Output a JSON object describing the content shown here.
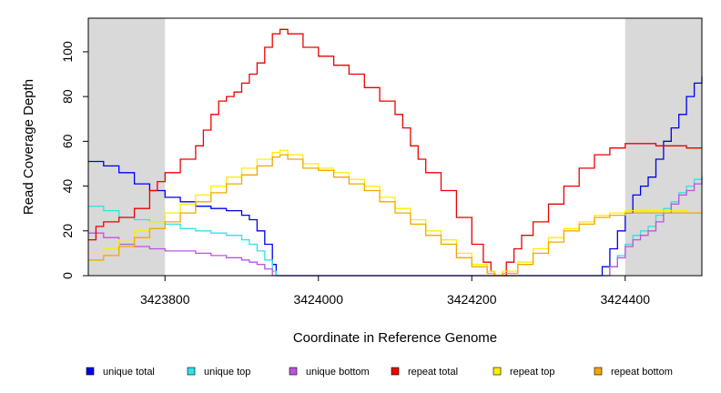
{
  "chart_data": {
    "type": "line",
    "title": "",
    "xlabel": "Coordinate in Reference Genome",
    "ylabel": "Read Coverage Depth",
    "xlim": [
      3423700,
      3424500
    ],
    "ylim": [
      0,
      115
    ],
    "x_ticks": [
      3423800,
      3424000,
      3424200,
      3424400
    ],
    "y_ticks": [
      0,
      20,
      40,
      60,
      80,
      100
    ],
    "shaded_regions": [
      [
        3423700,
        3423800
      ],
      [
        3424400,
        3424500
      ]
    ],
    "shade_color": "#d9d9d9",
    "grid": false,
    "legend_position": "bottom",
    "series": [
      {
        "name": "unique total",
        "color": "#0000ee",
        "points": [
          [
            3423700,
            51
          ],
          [
            3423720,
            49
          ],
          [
            3423740,
            46
          ],
          [
            3423760,
            41
          ],
          [
            3423780,
            38
          ],
          [
            3423800,
            35
          ],
          [
            3423820,
            33
          ],
          [
            3423840,
            31
          ],
          [
            3423860,
            30
          ],
          [
            3423880,
            29
          ],
          [
            3423900,
            27
          ],
          [
            3423910,
            25
          ],
          [
            3423920,
            20
          ],
          [
            3423930,
            14
          ],
          [
            3423940,
            5
          ],
          [
            3423945,
            0
          ],
          [
            3424360,
            0
          ],
          [
            3424370,
            4
          ],
          [
            3424380,
            12
          ],
          [
            3424390,
            20
          ],
          [
            3424400,
            28
          ],
          [
            3424410,
            36
          ],
          [
            3424420,
            40
          ],
          [
            3424430,
            44
          ],
          [
            3424440,
            52
          ],
          [
            3424450,
            60
          ],
          [
            3424460,
            66
          ],
          [
            3424470,
            72
          ],
          [
            3424480,
            80
          ],
          [
            3424490,
            86
          ],
          [
            3424500,
            89
          ]
        ]
      },
      {
        "name": "unique top",
        "color": "#33e0e8",
        "points": [
          [
            3423700,
            31
          ],
          [
            3423720,
            29
          ],
          [
            3423740,
            26
          ],
          [
            3423760,
            25
          ],
          [
            3423780,
            24
          ],
          [
            3423800,
            23
          ],
          [
            3423820,
            21
          ],
          [
            3423840,
            20
          ],
          [
            3423860,
            19
          ],
          [
            3423880,
            18
          ],
          [
            3423900,
            16
          ],
          [
            3423910,
            14
          ],
          [
            3423920,
            11
          ],
          [
            3423930,
            7
          ],
          [
            3423940,
            2
          ],
          [
            3423945,
            0
          ],
          [
            3424370,
            0
          ],
          [
            3424380,
            4
          ],
          [
            3424390,
            9
          ],
          [
            3424400,
            14
          ],
          [
            3424410,
            18
          ],
          [
            3424420,
            20
          ],
          [
            3424430,
            22
          ],
          [
            3424440,
            27
          ],
          [
            3424450,
            30
          ],
          [
            3424460,
            33
          ],
          [
            3424470,
            37
          ],
          [
            3424480,
            40
          ],
          [
            3424490,
            43
          ],
          [
            3424500,
            45
          ]
        ]
      },
      {
        "name": "unique bottom",
        "color": "#bb55dd",
        "points": [
          [
            3423700,
            19
          ],
          [
            3423720,
            17
          ],
          [
            3423740,
            14
          ],
          [
            3423760,
            13
          ],
          [
            3423780,
            12
          ],
          [
            3423800,
            11
          ],
          [
            3423820,
            11
          ],
          [
            3423840,
            10
          ],
          [
            3423860,
            9
          ],
          [
            3423880,
            8
          ],
          [
            3423900,
            7
          ],
          [
            3423910,
            6
          ],
          [
            3423920,
            5
          ],
          [
            3423930,
            3
          ],
          [
            3423940,
            0
          ],
          [
            3424370,
            0
          ],
          [
            3424380,
            4
          ],
          [
            3424390,
            8
          ],
          [
            3424400,
            13
          ],
          [
            3424410,
            16
          ],
          [
            3424420,
            18
          ],
          [
            3424430,
            20
          ],
          [
            3424440,
            24
          ],
          [
            3424450,
            28
          ],
          [
            3424460,
            32
          ],
          [
            3424470,
            36
          ],
          [
            3424480,
            38
          ],
          [
            3424490,
            41
          ],
          [
            3424500,
            44
          ]
        ]
      },
      {
        "name": "repeat total",
        "color": "#ee0000",
        "points": [
          [
            3423700,
            16
          ],
          [
            3423710,
            22
          ],
          [
            3423720,
            24
          ],
          [
            3423740,
            26
          ],
          [
            3423760,
            30
          ],
          [
            3423780,
            38
          ],
          [
            3423790,
            42
          ],
          [
            3423800,
            46
          ],
          [
            3423820,
            52
          ],
          [
            3423840,
            58
          ],
          [
            3423850,
            65
          ],
          [
            3423860,
            72
          ],
          [
            3423870,
            78
          ],
          [
            3423880,
            80
          ],
          [
            3423890,
            82
          ],
          [
            3423900,
            86
          ],
          [
            3423910,
            90
          ],
          [
            3423920,
            95
          ],
          [
            3423930,
            102
          ],
          [
            3423940,
            108
          ],
          [
            3423950,
            110
          ],
          [
            3423960,
            108
          ],
          [
            3423980,
            102
          ],
          [
            3424000,
            98
          ],
          [
            3424020,
            94
          ],
          [
            3424040,
            90
          ],
          [
            3424060,
            84
          ],
          [
            3424080,
            78
          ],
          [
            3424100,
            72
          ],
          [
            3424110,
            66
          ],
          [
            3424120,
            58
          ],
          [
            3424130,
            52
          ],
          [
            3424140,
            46
          ],
          [
            3424160,
            38
          ],
          [
            3424180,
            26
          ],
          [
            3424200,
            14
          ],
          [
            3424215,
            6
          ],
          [
            3424225,
            2
          ],
          [
            3424230,
            0
          ],
          [
            3424235,
            0
          ],
          [
            3424245,
            6
          ],
          [
            3424255,
            12
          ],
          [
            3424265,
            18
          ],
          [
            3424280,
            24
          ],
          [
            3424300,
            32
          ],
          [
            3424320,
            40
          ],
          [
            3424340,
            48
          ],
          [
            3424360,
            54
          ],
          [
            3424380,
            57
          ],
          [
            3424400,
            59
          ],
          [
            3424420,
            59
          ],
          [
            3424440,
            58
          ],
          [
            3424460,
            58
          ],
          [
            3424480,
            57
          ],
          [
            3424500,
            57
          ]
        ]
      },
      {
        "name": "repeat top",
        "color": "#ffee00",
        "points": [
          [
            3423700,
            10
          ],
          [
            3423720,
            12
          ],
          [
            3423740,
            16
          ],
          [
            3423760,
            20
          ],
          [
            3423780,
            24
          ],
          [
            3423800,
            28
          ],
          [
            3423820,
            32
          ],
          [
            3423840,
            36
          ],
          [
            3423860,
            40
          ],
          [
            3423880,
            44
          ],
          [
            3423900,
            48
          ],
          [
            3423920,
            52
          ],
          [
            3423940,
            55
          ],
          [
            3423950,
            56
          ],
          [
            3423960,
            54
          ],
          [
            3423980,
            50
          ],
          [
            3424000,
            48
          ],
          [
            3424020,
            46
          ],
          [
            3424040,
            43
          ],
          [
            3424060,
            40
          ],
          [
            3424080,
            35
          ],
          [
            3424100,
            30
          ],
          [
            3424120,
            25
          ],
          [
            3424140,
            20
          ],
          [
            3424160,
            16
          ],
          [
            3424180,
            10
          ],
          [
            3424200,
            5
          ],
          [
            3424220,
            2
          ],
          [
            3424230,
            0
          ],
          [
            3424240,
            2
          ],
          [
            3424260,
            6
          ],
          [
            3424280,
            12
          ],
          [
            3424300,
            17
          ],
          [
            3424320,
            21
          ],
          [
            3424340,
            24
          ],
          [
            3424360,
            27
          ],
          [
            3424380,
            28
          ],
          [
            3424400,
            29
          ],
          [
            3424420,
            29
          ],
          [
            3424440,
            29
          ],
          [
            3424460,
            29
          ],
          [
            3424480,
            28
          ],
          [
            3424500,
            28
          ]
        ]
      },
      {
        "name": "repeat bottom",
        "color": "#f0a800",
        "points": [
          [
            3423700,
            7
          ],
          [
            3423720,
            9
          ],
          [
            3423740,
            13
          ],
          [
            3423760,
            17
          ],
          [
            3423780,
            21
          ],
          [
            3423800,
            24
          ],
          [
            3423820,
            28
          ],
          [
            3423840,
            33
          ],
          [
            3423860,
            37
          ],
          [
            3423880,
            41
          ],
          [
            3423900,
            45
          ],
          [
            3423920,
            49
          ],
          [
            3423940,
            53
          ],
          [
            3423950,
            54
          ],
          [
            3423960,
            52
          ],
          [
            3423980,
            48
          ],
          [
            3424000,
            47
          ],
          [
            3424020,
            44
          ],
          [
            3424040,
            41
          ],
          [
            3424060,
            38
          ],
          [
            3424080,
            33
          ],
          [
            3424100,
            28
          ],
          [
            3424120,
            23
          ],
          [
            3424140,
            18
          ],
          [
            3424160,
            14
          ],
          [
            3424180,
            8
          ],
          [
            3424200,
            4
          ],
          [
            3424220,
            1
          ],
          [
            3424230,
            0
          ],
          [
            3424240,
            1
          ],
          [
            3424260,
            5
          ],
          [
            3424280,
            10
          ],
          [
            3424300,
            15
          ],
          [
            3424320,
            20
          ],
          [
            3424340,
            23
          ],
          [
            3424360,
            26
          ],
          [
            3424380,
            27
          ],
          [
            3424400,
            28
          ],
          [
            3424420,
            28
          ],
          [
            3424440,
            28
          ],
          [
            3424460,
            28
          ],
          [
            3424480,
            28
          ],
          [
            3424500,
            28
          ]
        ]
      }
    ]
  }
}
